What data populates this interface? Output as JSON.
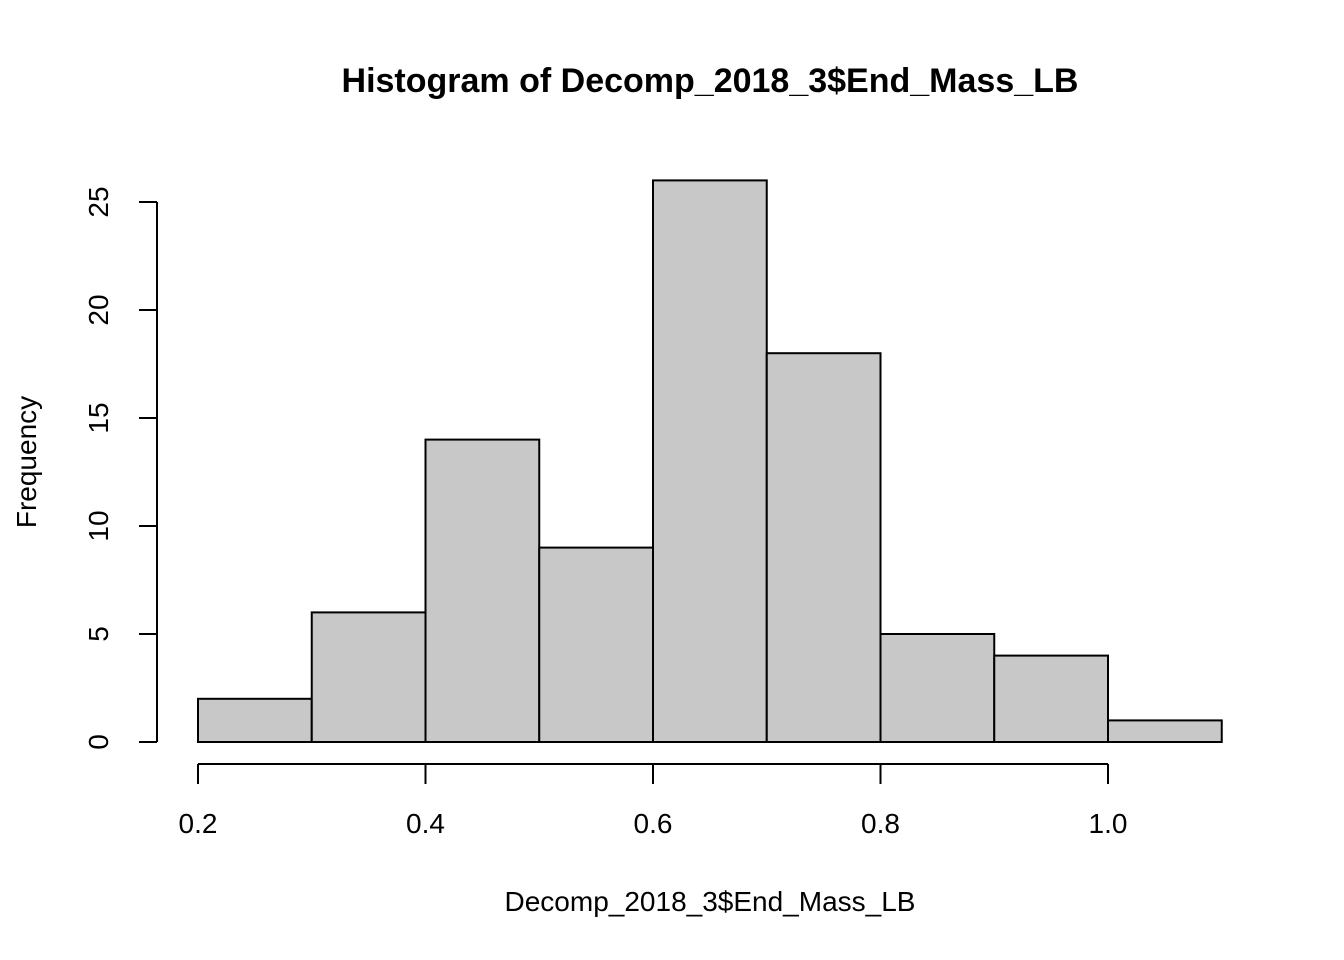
{
  "chart_data": {
    "type": "bar",
    "title": "Histogram of Decomp_2018_3$End_Mass_LB",
    "xlabel": "Decomp_2018_3$End_Mass_LB",
    "ylabel": "Frequency",
    "bins": [
      {
        "from": 0.2,
        "to": 0.3,
        "count": 2
      },
      {
        "from": 0.3,
        "to": 0.4,
        "count": 6
      },
      {
        "from": 0.4,
        "to": 0.5,
        "count": 14
      },
      {
        "from": 0.5,
        "to": 0.6,
        "count": 9
      },
      {
        "from": 0.6,
        "to": 0.7,
        "count": 26
      },
      {
        "from": 0.7,
        "to": 0.8,
        "count": 18
      },
      {
        "from": 0.8,
        "to": 0.9,
        "count": 5
      },
      {
        "from": 0.9,
        "to": 1.0,
        "count": 4
      },
      {
        "from": 1.0,
        "to": 1.1,
        "count": 1
      }
    ],
    "xlim": [
      0.2,
      1.1
    ],
    "ylim": [
      0,
      26
    ],
    "x_ticks": [
      0.2,
      0.4,
      0.6,
      0.8,
      1.0
    ],
    "x_tick_labels": [
      "0.2",
      "0.4",
      "0.6",
      "0.8",
      "1.0"
    ],
    "y_ticks": [
      0,
      5,
      10,
      15,
      20,
      25
    ],
    "y_tick_labels": [
      "0",
      "5",
      "10",
      "15",
      "20",
      "25"
    ],
    "grid": false,
    "bar_fill": "#c8c8c8",
    "bar_stroke": "#000000"
  }
}
